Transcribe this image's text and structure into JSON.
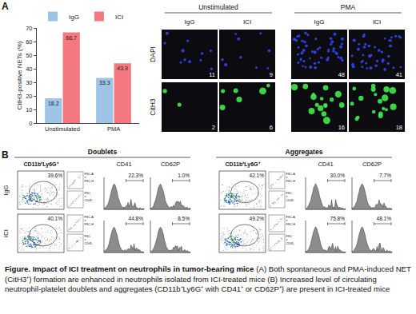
{
  "chart_data": {
    "type": "bar",
    "y_label": "CitH3-positive NETs (%)",
    "categories": [
      "Unstimulated",
      "PMA"
    ],
    "series": [
      {
        "name": "IgG",
        "color": "#9dc3e6",
        "values": [
          18.2,
          33.3
        ]
      },
      {
        "name": "ICI",
        "color": "#f4787f",
        "values": [
          66.7,
          43.9
        ]
      }
    ],
    "ylim": [
      0,
      70
    ],
    "yticks": [
      0,
      10,
      20,
      30,
      40,
      50,
      60,
      70
    ],
    "data_labels": true,
    "legend": "top",
    "grid": false
  },
  "panel_a": {
    "label": "A",
    "images": {
      "column_groups": [
        {
          "title": "Unstimulated",
          "columns": [
            "IgG",
            "ICI"
          ]
        },
        {
          "title": "PMA",
          "columns": [
            "IgG",
            "ICI"
          ]
        }
      ],
      "rows": [
        {
          "stain": "DAPI",
          "color": "#3146f2",
          "counts": [
            "11",
            "9",
            "48",
            "41"
          ]
        },
        {
          "stain": "CitH3",
          "color": "#3fea4a",
          "counts": [
            "2",
            "6",
            "16",
            "18"
          ]
        }
      ]
    }
  },
  "panel_b": {
    "label": "B",
    "gate": "CD11b⁺Ly6G⁺",
    "inset_labels": [
      [
        "FSC-A",
        "v",
        "FSC-H"
      ],
      [
        "FSC",
        "v",
        "CD45"
      ]
    ],
    "markers": [
      "CD41",
      "CD62P"
    ],
    "rows": [
      "IgG",
      "ICI"
    ],
    "groups": [
      {
        "title": "Doublets",
        "gate_percent": [
          "39.6%",
          "40.1%"
        ],
        "marker_percent": [
          [
            "22.3%",
            "1.0%"
          ],
          [
            "44.8%",
            "8.5%"
          ]
        ]
      },
      {
        "title": "Aggregates",
        "gate_percent": [
          "42.1%",
          "49.2%"
        ],
        "marker_percent": [
          [
            "30.0%",
            "7.7%"
          ],
          [
            "75.8%",
            "48.1%"
          ]
        ]
      }
    ]
  },
  "caption": {
    "title": "Figure. Impact of ICI treatment on neutrophils in tumor-bearing mice",
    "text": "(A) Both spontaneous and PMA-induced NET (CitH3⁺) formation are enhanced in neutrophils isolated from ICI-treated mice (B) Increased level of circulating neutrophil-platelet doublets and aggregates (CD11b⁺Ly6G⁺ with CD41⁺ or CD62P⁺) are present in ICI-treated mice"
  }
}
